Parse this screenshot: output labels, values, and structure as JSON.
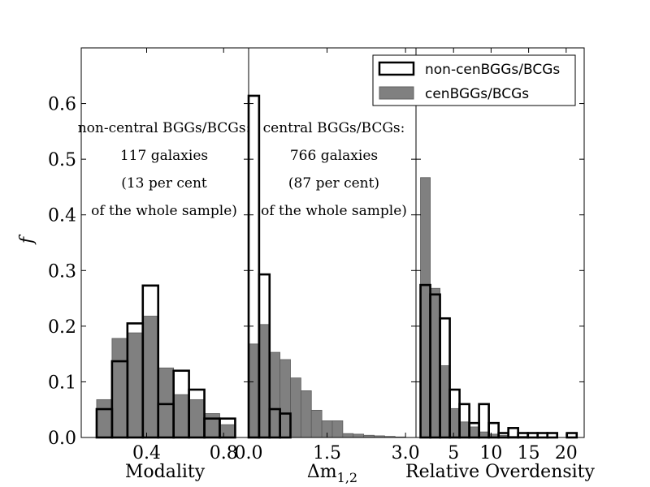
{
  "chart_data": {
    "type": "histogram",
    "ylabel": "f",
    "ylim": [
      0,
      0.7
    ],
    "yticks": [
      "0.0",
      "0.1",
      "0.2",
      "0.3",
      "0.4",
      "0.5",
      "0.6"
    ],
    "legend": {
      "location": "top-right",
      "entries": [
        {
          "label": "non-cenBGGs/BCGs",
          "style": "outline"
        },
        {
          "label": "cenBGGs/BCGs",
          "style": "filled"
        }
      ]
    },
    "colors": {
      "filled": "#808080",
      "outline": "#000000",
      "frame": "#000000"
    },
    "panels": [
      {
        "name": "modality",
        "xlabel": "Modality",
        "xlim": [
          0.06,
          0.93
        ],
        "xticks": [
          {
            "v": 0.4,
            "label": "0.4"
          },
          {
            "v": 0.8,
            "label": "0.8"
          }
        ],
        "bins": [
          0.14,
          0.22,
          0.3,
          0.38,
          0.46,
          0.54,
          0.62,
          0.7,
          0.78,
          0.86
        ],
        "series": [
          {
            "name": "cenBGGs/BCGs",
            "values": [
              0.068,
              0.178,
              0.188,
              0.218,
              0.125,
              0.077,
              0.068,
              0.043,
              0.023,
              0.008
            ]
          },
          {
            "name": "non-cenBGGs/BCGs",
            "values": [
              0.051,
              0.137,
              0.205,
              0.273,
              0.06,
              0.12,
              0.086,
              0.034,
              0.034,
              0.0
            ]
          }
        ],
        "annotation": [
          "non-central BGGs/BCGs:",
          "117 galaxies",
          "(13 per cent",
          "of the whole sample)"
        ]
      },
      {
        "name": "delta-m12",
        "xlabel": "Δm",
        "xlabel_sub": "1,2",
        "xlim": [
          0.0,
          3.2
        ],
        "xticks": [
          {
            "v": 0.0,
            "label": "0.0"
          },
          {
            "v": 1.5,
            "label": "1.5"
          },
          {
            "v": 3.0,
            "label": "3.0"
          }
        ],
        "bins": [
          0.0,
          0.2,
          0.4,
          0.6,
          0.8,
          1.0,
          1.2,
          1.4,
          1.6,
          1.8,
          2.0,
          2.2,
          2.4,
          2.6,
          2.8,
          3.0
        ],
        "series": [
          {
            "name": "cenBGGs/BCGs",
            "values": [
              0.168,
              0.203,
              0.153,
              0.14,
              0.107,
              0.084,
              0.049,
              0.03,
              0.03,
              0.007,
              0.006,
              0.004,
              0.003,
              0.002,
              0.001
            ]
          },
          {
            "name": "non-cenBGGs/BCGs",
            "values": [
              0.614,
              0.293,
              0.051,
              0.043,
              0.0,
              0.0,
              0.0,
              0.0,
              0.0,
              0.0,
              0.0,
              0.0,
              0.0,
              0.0,
              0.0
            ]
          }
        ],
        "annotation": [
          "central BGGs/BCGs:",
          "766 galaxies",
          "(87 per cent)",
          "of the whole sample)"
        ]
      },
      {
        "name": "relative-overdensity",
        "xlabel": "Relative Overdensity",
        "xlim": [
          0.0,
          22.4
        ],
        "xticks": [
          {
            "v": 5,
            "label": "5"
          },
          {
            "v": 10,
            "label": "10"
          },
          {
            "v": 15,
            "label": "15"
          },
          {
            "v": 20,
            "label": "20"
          }
        ],
        "bins": [
          0.6,
          1.9,
          3.2,
          4.5,
          5.8,
          7.1,
          8.4,
          9.7,
          11.0,
          12.3,
          13.6,
          14.9,
          16.2,
          17.5,
          18.8,
          20.1,
          21.4
        ],
        "series": [
          {
            "name": "cenBGGs/BCGs",
            "values": [
              0.467,
              0.268,
              0.129,
              0.052,
              0.028,
              0.019,
              0.01,
              0.006,
              0.004,
              0.002,
              0.002,
              0.001,
              0.001,
              0.0,
              0.0,
              0.001
            ]
          },
          {
            "name": "non-cenBGGs/BCGs",
            "values": [
              0.274,
              0.257,
              0.214,
              0.086,
              0.06,
              0.026,
              0.06,
              0.026,
              0.008,
              0.017,
              0.008,
              0.008,
              0.008,
              0.008,
              0.0,
              0.008
            ]
          }
        ]
      }
    ]
  }
}
